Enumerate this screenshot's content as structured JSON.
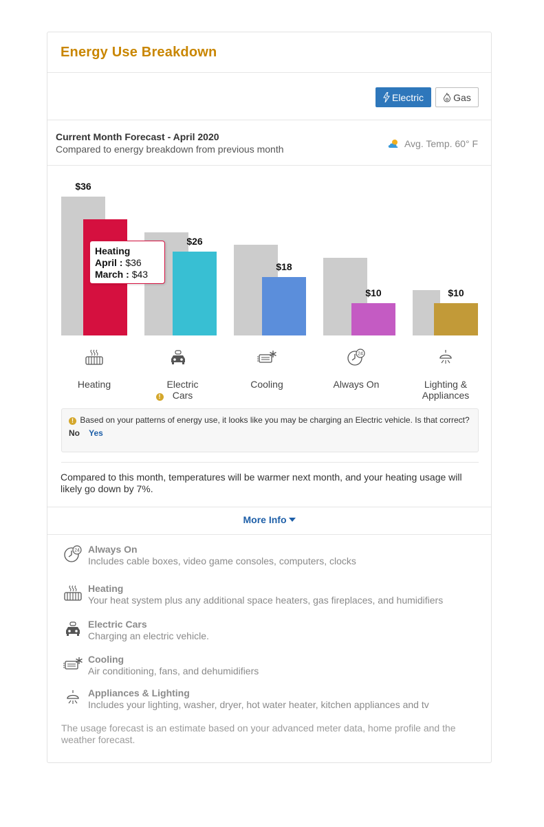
{
  "title": "Energy Use Breakdown",
  "toggles": {
    "electric": "Electric",
    "gas": "Gas",
    "selected": "Electric"
  },
  "forecast": {
    "title": "Current Month Forecast - April 2020",
    "subtitle": "Compared to energy breakdown from previous month",
    "weather": "Avg. Temp. 60° F"
  },
  "colors": {
    "previous": "#cccccc",
    "accent": "#c98600",
    "link": "#1e5fa8",
    "electric_toggle": "#2e77bb"
  },
  "chart_data": {
    "type": "bar",
    "categories": [
      "Heating",
      "Electric Cars",
      "Cooling",
      "Always On",
      "Lighting & Appliances"
    ],
    "series": [
      {
        "values": [
          43,
          32,
          28,
          24,
          14
        ],
        "color": "#cccccc"
      },
      {
        "values": [
          36,
          26,
          18,
          10,
          10
        ],
        "colors": [
          "#d5103f",
          "#38bfd3",
          "#5b8edb",
          "#c45bc3",
          "#c29a38"
        ]
      }
    ],
    "data_labels": [
      "$36",
      "$26",
      "$18",
      "$10",
      "$10"
    ],
    "ylim": [
      0,
      43
    ]
  },
  "tooltip": {
    "category": "Heating",
    "april_label": "April :",
    "april_value": "$36",
    "march_label": "March :",
    "march_value": "$43"
  },
  "categories_display": [
    {
      "label": "Heating",
      "icon": "heater-icon"
    },
    {
      "label": "Electric Cars",
      "icon": "car-icon",
      "warning": true
    },
    {
      "label": "Cooling",
      "icon": "ac-icon"
    },
    {
      "label": "Always On",
      "icon": "always-on-icon"
    },
    {
      "label": "Lighting & Appliances",
      "icon": "lamp-icon"
    }
  ],
  "alert": {
    "message": "Based on your patterns of energy use, it looks like you may be charging an Electric vehicle. Is that correct?",
    "no": "No",
    "yes": "Yes"
  },
  "note": "Compared to this month, temperatures will be warmer next month, and your heating usage will likely go down by 7%.",
  "more_info": "More Info",
  "info_items": [
    {
      "title": "Always On",
      "desc": "Includes cable boxes, video game consoles, computers, clocks",
      "icon": "always-on-icon"
    },
    {
      "title": "Heating",
      "desc": "Your heat system plus any additional space heaters, gas fireplaces, and humidifiers",
      "icon": "heater-icon"
    },
    {
      "title": "Electric Cars",
      "desc": "Charging an electric vehicle.",
      "icon": "car-icon"
    },
    {
      "title": "Cooling",
      "desc": "Air conditioning, fans, and dehumidifiers",
      "icon": "ac-icon"
    },
    {
      "title": "Appliances & Lighting",
      "desc": "Includes your lighting, washer, dryer, hot water heater, kitchen appliances and tv",
      "icon": "lamp-icon"
    }
  ],
  "footnote": "The usage forecast is an estimate based on your advanced meter data, home profile and the weather forecast."
}
